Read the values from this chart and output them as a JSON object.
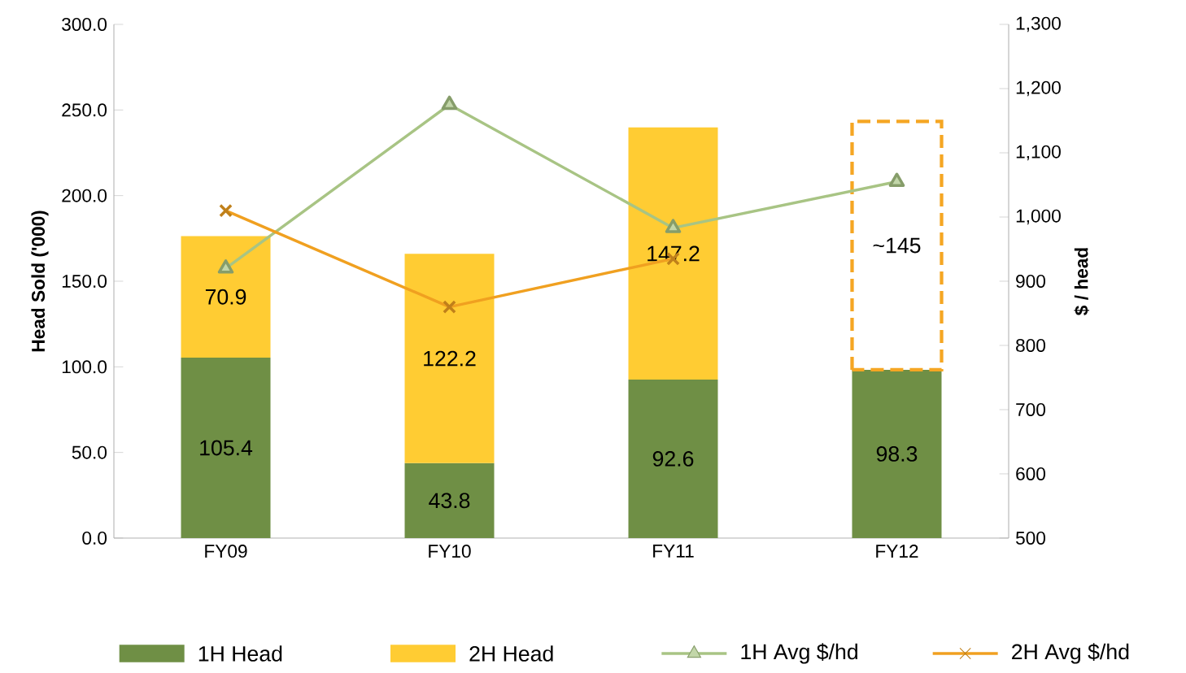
{
  "chart_data": {
    "type": "bar",
    "stacked": true,
    "ylabel": "Head Sold ('000)",
    "y2label": "$ / head",
    "categories": [
      "FY09",
      "FY10",
      "FY11",
      "FY12"
    ],
    "ylim": [
      0,
      300
    ],
    "yticks": [
      {
        "value": 0,
        "label": "0.0"
      },
      {
        "value": 50,
        "label": "50.0"
      },
      {
        "value": 100,
        "label": "100.0"
      },
      {
        "value": 150,
        "label": "150.0"
      },
      {
        "value": 200,
        "label": "200.0"
      },
      {
        "value": 250,
        "label": "250.0"
      },
      {
        "value": 300,
        "label": "300.0"
      }
    ],
    "y2lim": [
      500,
      1300
    ],
    "y2ticks": [
      500,
      600,
      700,
      800,
      900,
      {
        "value": 1000,
        "label": "1,000"
      },
      {
        "value": 1100,
        "label": "1,100"
      },
      {
        "value": 1200,
        "label": "1,200"
      },
      {
        "value": 1300,
        "label": "1,300"
      }
    ],
    "series": [
      {
        "name": "1H Head",
        "color": "#6f8f45",
        "values": [
          105.4,
          43.8,
          92.6,
          98.3
        ],
        "value_labels": [
          "105.4",
          "43.8",
          "92.6",
          "98.3"
        ]
      },
      {
        "name": "2H Head",
        "color": "#ffcc33",
        "values": [
          70.9,
          122.2,
          147.2,
          null
        ],
        "value_labels": [
          "70.9",
          "122.2",
          "147.2",
          null
        ]
      },
      {
        "color": "#f5a623",
        "line_style": "dashed",
        "values": [
          null,
          null,
          null,
          145
        ],
        "value_labels": [
          null,
          null,
          null,
          "~145"
        ]
      },
      {
        "name": "1H Avg $/hd",
        "type": "line",
        "axis": "y2",
        "marker": "triangle",
        "color": "#a8c484",
        "values": [
          920,
          1175,
          983,
          1055
        ]
      },
      {
        "name": "2H Avg $/hd",
        "type": "line",
        "axis": "y2",
        "marker": "cross",
        "color": "#f0a020",
        "values": [
          1010,
          860,
          935,
          null
        ]
      }
    ],
    "legend": "bottom"
  }
}
